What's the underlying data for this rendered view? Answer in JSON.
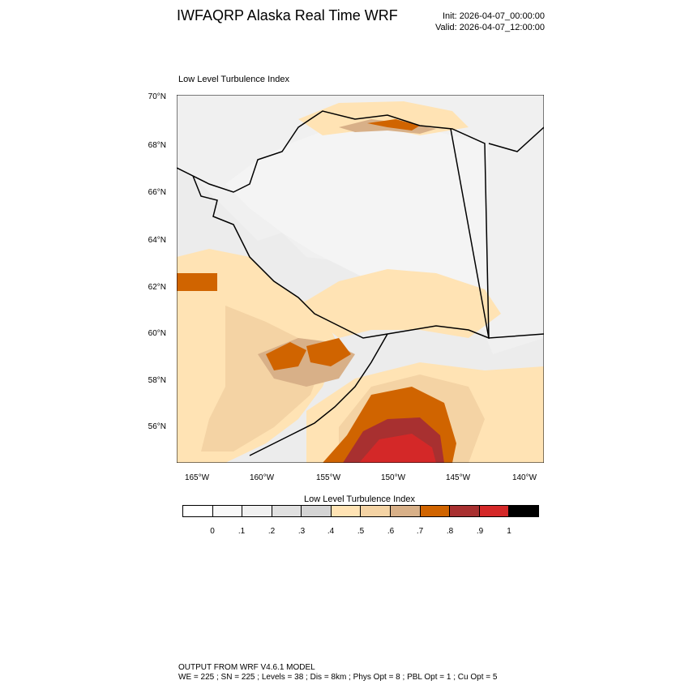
{
  "header": {
    "title": "IWFAQRP Alaska Real Time WRF",
    "init": "Init: 2026-04-07_00:00:00",
    "valid": "Valid: 2026-04-07_12:00:00"
  },
  "map": {
    "label": "Low Level Turbulence Index",
    "lat_labels": [
      "70°N",
      "68°N",
      "66°N",
      "64°N",
      "62°N",
      "60°N",
      "58°N",
      "56°N"
    ],
    "lon_labels": [
      "165°W",
      "160°W",
      "155°W",
      "150°W",
      "145°W",
      "140°W"
    ]
  },
  "colorbar": {
    "title": "Low Level Turbulence Index",
    "colors": [
      "#ffffff",
      "#f8f8f8",
      "#f0f0f0",
      "#e0e0e0",
      "#d4d4d4",
      "#ffe3b4",
      "#f4d3a4",
      "#d8b088",
      "#d06400",
      "#a83030",
      "#d42828",
      "#000000"
    ],
    "labels": [
      "0",
      ".1",
      ".2",
      ".3",
      ".4",
      ".5",
      ".6",
      ".7",
      ".8",
      ".9",
      "1"
    ]
  },
  "footer": {
    "line1": "OUTPUT FROM WRF V4.6.1 MODEL",
    "line2": "WE = 225 ; SN = 225 ; Levels = 38 ; Dis = 8km ; Phys Opt = 8 ; PBL Opt = 1 ; Cu Opt = 5"
  }
}
